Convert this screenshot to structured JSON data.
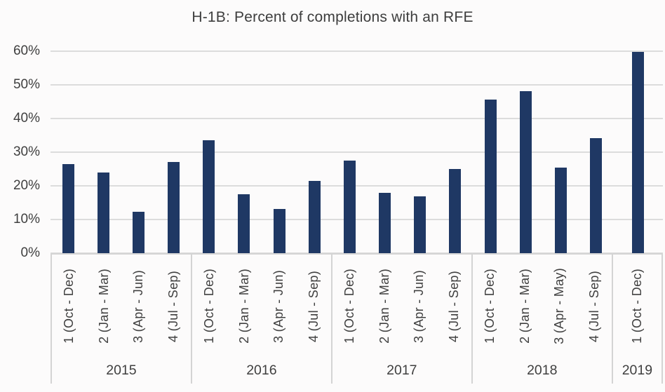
{
  "chart_data": {
    "type": "bar",
    "title": "H-1B: Percent of completions with an RFE",
    "xlabel": "",
    "ylabel": "",
    "ylim": [
      0,
      60
    ],
    "yticks": [
      "0%",
      "10%",
      "20%",
      "30%",
      "40%",
      "50%",
      "60%"
    ],
    "ytick_values": [
      0,
      10,
      20,
      30,
      40,
      50,
      60
    ],
    "grid": true,
    "legend": "none",
    "bar_color": "#1f3864",
    "gridline_color": "#dcdcdc",
    "axis_text_color": "#404040",
    "groups": [
      {
        "year": "2015",
        "quarters": [
          {
            "label": "1 (Oct - Dec)",
            "value": 26.5
          },
          {
            "label": "2 (Jan - Mar)",
            "value": 24.0
          },
          {
            "label": "3 (Apr - Jun)",
            "value": 12.3
          },
          {
            "label": "4 (Jul - Sep)",
            "value": 27.0
          }
        ]
      },
      {
        "year": "2016",
        "quarters": [
          {
            "label": "1 (Oct - Dec)",
            "value": 33.6
          },
          {
            "label": "2 (Jan - Mar)",
            "value": 17.6
          },
          {
            "label": "3 (Apr - Jun)",
            "value": 13.1
          },
          {
            "label": "4 (Jul - Sep)",
            "value": 21.5
          }
        ]
      },
      {
        "year": "2017",
        "quarters": [
          {
            "label": "1 (Oct - Dec)",
            "value": 27.4
          },
          {
            "label": "2 (Jan - Mar)",
            "value": 18.0
          },
          {
            "label": "3 (Apr - Jun)",
            "value": 16.9
          },
          {
            "label": "4 (Jul - Sep)",
            "value": 24.9
          }
        ]
      },
      {
        "year": "2018",
        "quarters": [
          {
            "label": "1 (Oct - Dec)",
            "value": 45.6
          },
          {
            "label": "2 (Jan - Mar)",
            "value": 48.2
          },
          {
            "label": "3 (Apr - May)",
            "value": 25.4
          },
          {
            "label": "4 (Jul - Sep)",
            "value": 34.2
          }
        ]
      },
      {
        "year": "2019",
        "quarters": [
          {
            "label": "1 (Oct - Dec)",
            "value": 59.8
          }
        ]
      }
    ]
  }
}
